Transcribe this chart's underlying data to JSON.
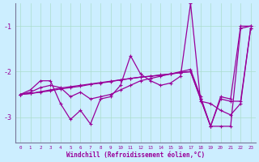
{
  "xlabel": "Windchill (Refroidissement éolien,°C)",
  "hours": [
    0,
    1,
    2,
    3,
    4,
    5,
    6,
    7,
    8,
    9,
    10,
    11,
    12,
    13,
    14,
    15,
    16,
    17,
    18,
    19,
    20,
    21,
    22,
    23
  ],
  "series1": [
    -2.5,
    -2.4,
    -2.2,
    -2.2,
    -2.7,
    -3.05,
    -2.85,
    -3.15,
    -2.6,
    -2.55,
    -2.3,
    -1.65,
    -2.05,
    -2.2,
    -2.3,
    -2.25,
    -2.1,
    -0.5,
    -2.65,
    -2.7,
    -2.85,
    -2.95,
    -2.7,
    -1.05
  ],
  "series2": [
    -2.5,
    -2.45,
    -2.35,
    -2.3,
    -2.35,
    -2.55,
    -2.45,
    -2.6,
    -2.55,
    -2.5,
    -2.4,
    -2.3,
    -2.2,
    -2.15,
    -2.1,
    -2.05,
    -2.0,
    -1.95,
    -2.55,
    -3.2,
    -2.55,
    -2.6,
    -1.0,
    -1.0
  ],
  "series3": [
    -2.5,
    -2.48,
    -2.44,
    -2.4,
    -2.36,
    -2.33,
    -2.3,
    -2.27,
    -2.24,
    -2.21,
    -2.18,
    -2.15,
    -2.12,
    -2.1,
    -2.07,
    -2.05,
    -2.02,
    -2.0,
    -2.6,
    -3.2,
    -2.6,
    -2.65,
    -2.65,
    -1.05
  ],
  "series4": [
    -2.5,
    -2.48,
    -2.45,
    -2.42,
    -2.38,
    -2.35,
    -2.32,
    -2.28,
    -2.25,
    -2.22,
    -2.18,
    -2.15,
    -2.12,
    -2.1,
    -2.08,
    -2.05,
    -2.02,
    -2.0,
    -2.6,
    -3.2,
    -3.2,
    -3.2,
    -1.05,
    -1.0
  ],
  "line_color": "#990099",
  "bg_color": "#cceeff",
  "grid_color": "#aaddcc",
  "ylim": [
    -3.55,
    -0.5
  ],
  "yticks": [
    -3.0,
    -2.0,
    -1.0
  ]
}
